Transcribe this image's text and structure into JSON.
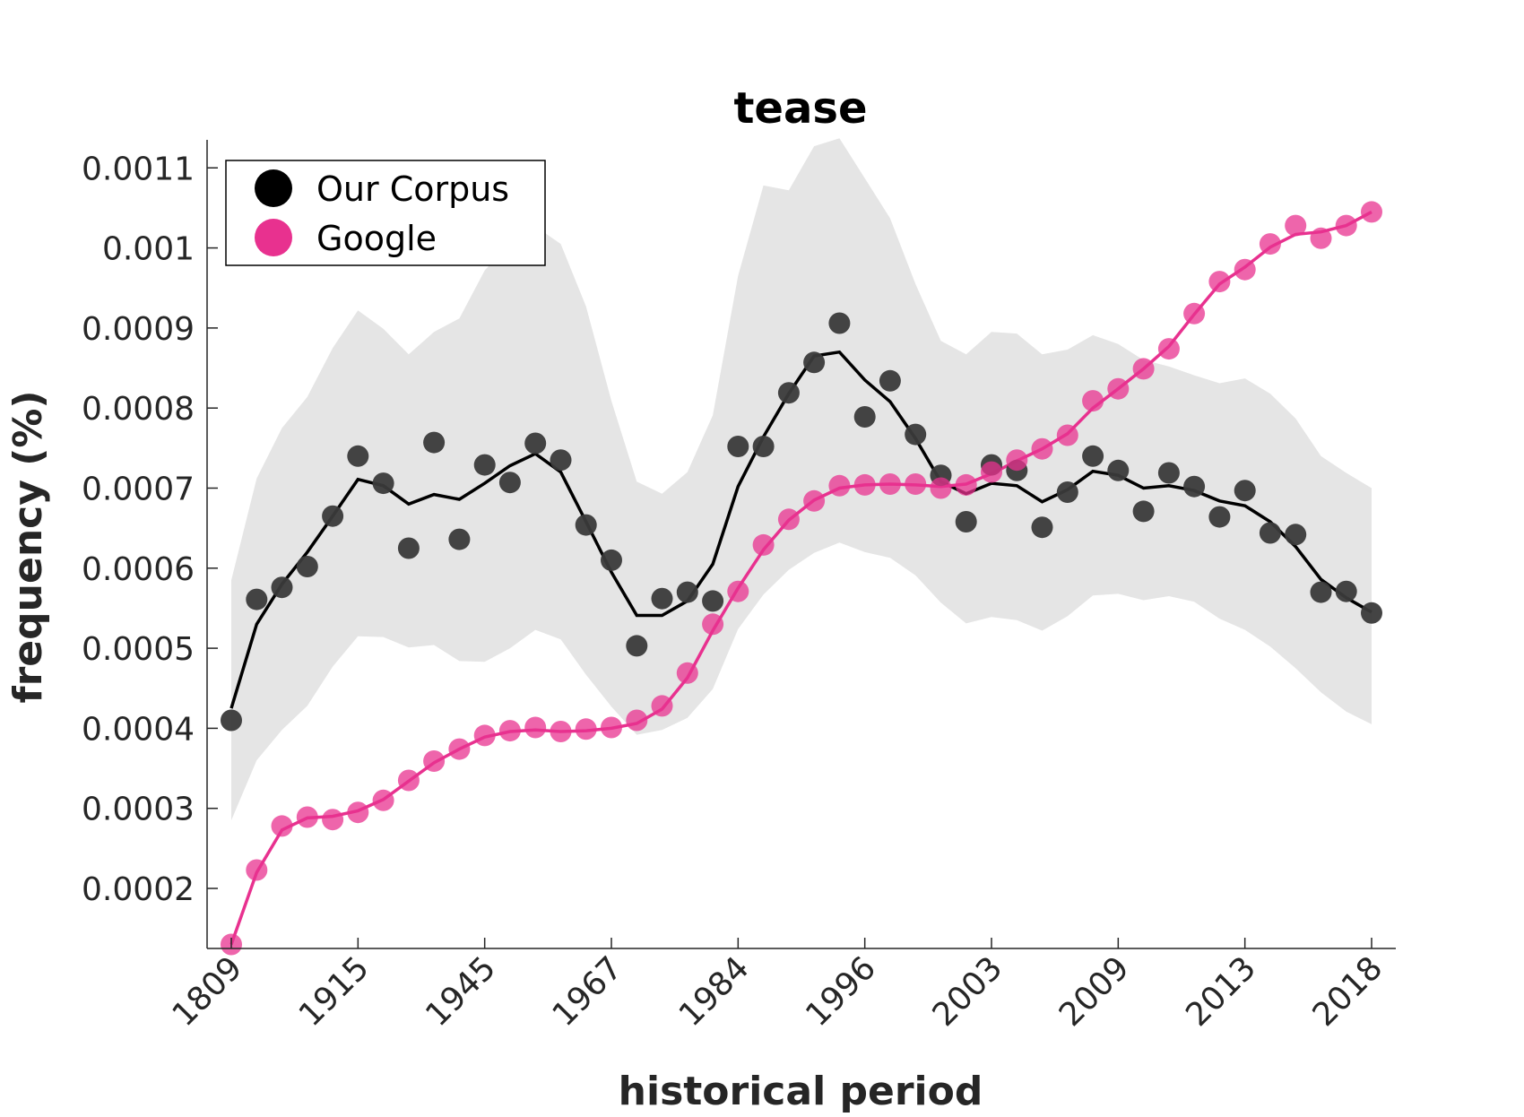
{
  "chart_data": {
    "type": "line",
    "title": "tease",
    "xlabel": "historical period",
    "ylabel": "frequency (%)",
    "x_tick_labels": [
      "1809",
      "1915",
      "1945",
      "1967",
      "1984",
      "1996",
      "2003",
      "2009",
      "2013",
      "2018"
    ],
    "y_ticks": [
      0.0002,
      0.0003,
      0.0004,
      0.0005,
      0.0006,
      0.0007,
      0.0008,
      0.0009,
      0.001,
      0.0011
    ],
    "y_tick_labels": [
      "0.0002",
      "0.0003",
      "0.0004",
      "0.0005",
      "0.0006",
      "0.0007",
      "0.0008",
      "0.0009",
      "0.001",
      "0.0011"
    ],
    "ylim": [
      0.000125,
      0.001135
    ],
    "legend_position": "top-left",
    "grid": false,
    "colors": {
      "corpus": "#3a3a3a",
      "corpus_line": "#000000",
      "google": "#e8318f",
      "band": "#e5e5e5"
    },
    "series": [
      {
        "name": "Our Corpus",
        "points": [
          0.00041,
          0.000561,
          0.000576,
          0.000602,
          0.000665,
          0.00074,
          0.000706,
          0.000625,
          0.000757,
          0.000636,
          0.000729,
          0.000707,
          0.000756,
          0.000735,
          0.000654,
          0.00061,
          0.000503,
          0.000562,
          0.00057,
          0.000559,
          0.000752,
          0.000752,
          0.000819,
          0.000857,
          0.000906,
          0.000789,
          0.000834,
          0.000767,
          0.000716,
          0.000658,
          0.000729,
          0.000722,
          0.000651,
          0.000695,
          0.00074,
          0.000722,
          0.000671,
          0.000719,
          0.000702,
          0.000664,
          0.000697,
          0.000644,
          0.000642,
          0.00057,
          0.000571,
          0.000544
        ],
        "smoothed": [
          0.000425,
          0.00053,
          0.00058,
          0.00062,
          0.000665,
          0.000711,
          0.000703,
          0.00068,
          0.000692,
          0.000686,
          0.000706,
          0.000728,
          0.000743,
          0.00072,
          0.000658,
          0.000595,
          0.000541,
          0.000541,
          0.000559,
          0.000605,
          0.000702,
          0.000764,
          0.000818,
          0.000865,
          0.00087,
          0.000835,
          0.000808,
          0.000762,
          0.000708,
          0.000693,
          0.000706,
          0.000703,
          0.000683,
          0.000698,
          0.000721,
          0.000716,
          0.0007,
          0.000703,
          0.000697,
          0.000684,
          0.000678,
          0.000658,
          0.000627,
          0.000586,
          0.000563,
          0.000545
        ],
        "band_upper": [
          0.000585,
          0.000712,
          0.000775,
          0.000814,
          0.000875,
          0.000922,
          0.000899,
          0.000867,
          0.000895,
          0.000912,
          0.000972,
          0.001006,
          0.001027,
          0.001005,
          0.000927,
          0.000809,
          0.000708,
          0.000693,
          0.00072,
          0.000791,
          0.000965,
          0.001078,
          0.001072,
          0.001127,
          0.001137,
          0.001087,
          0.001037,
          0.000955,
          0.000884,
          0.000867,
          0.000895,
          0.000893,
          0.000867,
          0.000873,
          0.000891,
          0.00088,
          0.00086,
          0.000852,
          0.000841,
          0.000831,
          0.000837,
          0.000818,
          0.000787,
          0.00074,
          0.000719,
          0.0007
        ],
        "band_lower": [
          0.000285,
          0.00036,
          0.000398,
          0.000428,
          0.000477,
          0.000515,
          0.000514,
          0.000501,
          0.000504,
          0.000484,
          0.000483,
          0.0005,
          0.000523,
          0.000511,
          0.000467,
          0.000427,
          0.000392,
          0.000398,
          0.000413,
          0.000449,
          0.000524,
          0.000567,
          0.000598,
          0.000619,
          0.000632,
          0.00062,
          0.000613,
          0.000591,
          0.000557,
          0.000531,
          0.000539,
          0.000535,
          0.000522,
          0.00054,
          0.000566,
          0.000568,
          0.00056,
          0.000565,
          0.000558,
          0.000537,
          0.000523,
          0.000502,
          0.000475,
          0.000445,
          0.000421,
          0.000405
        ]
      },
      {
        "name": "Google",
        "points": [
          0.00013,
          0.000223,
          0.000278,
          0.000289,
          0.000286,
          0.000295,
          0.00031,
          0.000335,
          0.000359,
          0.000374,
          0.000391,
          0.000397,
          0.000401,
          0.000396,
          0.000399,
          0.000401,
          0.00041,
          0.000428,
          0.000469,
          0.00053,
          0.000571,
          0.000629,
          0.000661,
          0.000684,
          0.000703,
          0.000704,
          0.000705,
          0.000705,
          0.0007,
          0.000704,
          0.00072,
          0.000735,
          0.000749,
          0.000766,
          0.000809,
          0.000824,
          0.000849,
          0.000874,
          0.000918,
          0.000958,
          0.000973,
          0.001005,
          0.001028,
          0.001012,
          0.001028,
          0.001045
        ],
        "smoothed": [
          0.00013,
          0.00022,
          0.000273,
          0.000288,
          0.00029,
          0.000297,
          0.000311,
          0.000334,
          0.000357,
          0.000374,
          0.000389,
          0.000396,
          0.000398,
          0.000396,
          0.000397,
          0.0004,
          0.000406,
          0.000424,
          0.000463,
          0.000522,
          0.000575,
          0.000623,
          0.00066,
          0.000685,
          0.0007,
          0.000704,
          0.000705,
          0.000704,
          0.000702,
          0.000705,
          0.000718,
          0.000734,
          0.000749,
          0.000768,
          0.0008,
          0.000824,
          0.000849,
          0.000877,
          0.000917,
          0.000955,
          0.000976,
          0.001001,
          0.001017,
          0.00102,
          0.001028,
          0.001045
        ]
      }
    ]
  }
}
